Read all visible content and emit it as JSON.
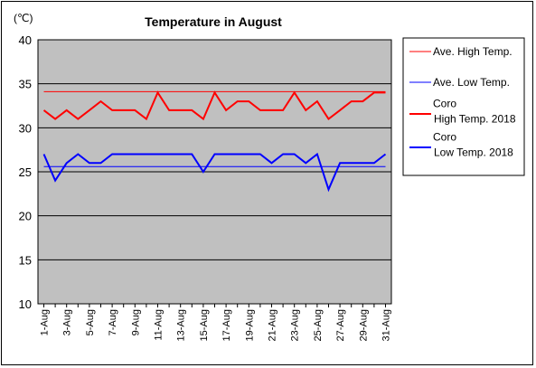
{
  "chart_data": {
    "type": "line",
    "title": "Temperature in August",
    "unit_label": "(℃)",
    "ylim": [
      10,
      40
    ],
    "y_ticks": [
      10,
      15,
      20,
      25,
      30,
      35,
      40
    ],
    "grid": true,
    "legend_position": "right",
    "x": [
      "1-Aug",
      "2-Aug",
      "3-Aug",
      "4-Aug",
      "5-Aug",
      "6-Aug",
      "7-Aug",
      "8-Aug",
      "9-Aug",
      "10-Aug",
      "11-Aug",
      "12-Aug",
      "13-Aug",
      "14-Aug",
      "15-Aug",
      "16-Aug",
      "17-Aug",
      "18-Aug",
      "19-Aug",
      "20-Aug",
      "21-Aug",
      "22-Aug",
      "23-Aug",
      "24-Aug",
      "25-Aug",
      "26-Aug",
      "27-Aug",
      "28-Aug",
      "29-Aug",
      "30-Aug",
      "31-Aug"
    ],
    "x_tick_labels": [
      "1-Aug",
      "3-Aug",
      "5-Aug",
      "7-Aug",
      "9-Aug",
      "11-Aug",
      "13-Aug",
      "15-Aug",
      "17-Aug",
      "19-Aug",
      "21-Aug",
      "23-Aug",
      "25-Aug",
      "27-Aug",
      "29-Aug",
      "31-Aug"
    ],
    "series": [
      {
        "name": "Ave. High Temp.",
        "color": "#ff0000",
        "style": "thin",
        "values": [
          34.1,
          34.1,
          34.1,
          34.1,
          34.1,
          34.1,
          34.1,
          34.1,
          34.1,
          34.1,
          34.1,
          34.1,
          34.1,
          34.1,
          34.1,
          34.1,
          34.1,
          34.1,
          34.1,
          34.1,
          34.1,
          34.1,
          34.1,
          34.1,
          34.1,
          34.1,
          34.1,
          34.1,
          34.1,
          34.1,
          34.1
        ]
      },
      {
        "name": "Ave. Low Temp.",
        "color": "#0000ff",
        "style": "thin",
        "values": [
          25.6,
          25.6,
          25.6,
          25.6,
          25.6,
          25.6,
          25.6,
          25.6,
          25.6,
          25.6,
          25.6,
          25.6,
          25.6,
          25.6,
          25.6,
          25.6,
          25.6,
          25.6,
          25.6,
          25.6,
          25.6,
          25.6,
          25.6,
          25.6,
          25.6,
          25.6,
          25.6,
          25.6,
          25.6,
          25.6,
          25.6
        ]
      },
      {
        "name": "Coro High Temp. 2018",
        "name_lines": [
          "Coro",
          "High Temp. 2018"
        ],
        "color": "#ff0000",
        "style": "thick",
        "values": [
          32,
          31,
          32,
          31,
          32,
          33,
          32,
          32,
          32,
          31,
          34,
          32,
          32,
          32,
          31,
          34,
          32,
          33,
          33,
          32,
          32,
          32,
          34,
          32,
          33,
          31,
          32,
          33,
          33,
          34,
          34
        ]
      },
      {
        "name": "Coro Low Temp. 2018",
        "name_lines": [
          "Coro",
          "Low Temp. 2018"
        ],
        "color": "#0000ff",
        "style": "thick",
        "values": [
          27,
          24,
          26,
          27,
          26,
          26,
          27,
          27,
          27,
          27,
          27,
          27,
          27,
          27,
          25,
          27,
          27,
          27,
          27,
          27,
          26,
          27,
          27,
          26,
          27,
          23,
          26,
          26,
          26,
          26,
          27
        ]
      }
    ]
  }
}
